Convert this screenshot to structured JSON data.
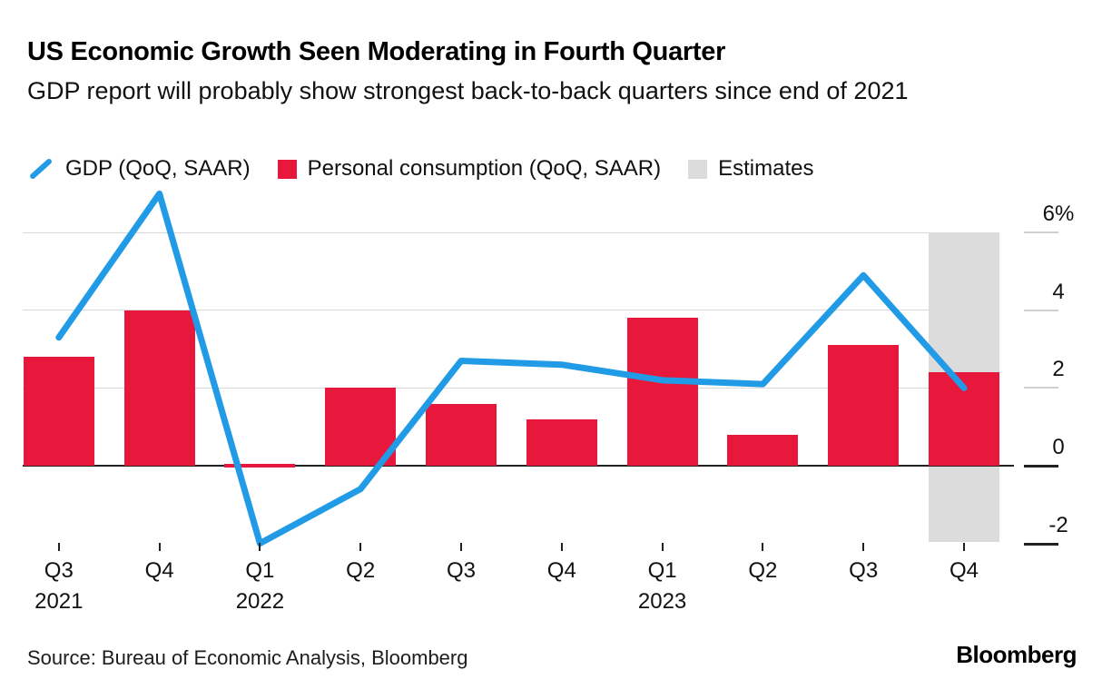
{
  "header": {
    "title": "US Economic Growth Seen Moderating in Fourth Quarter",
    "subtitle": "GDP report will probably show strongest back-to-back quarters since end of 2021"
  },
  "legend": {
    "items": [
      {
        "label": "GDP (QoQ, SAAR)",
        "marker": "line",
        "color": "#219be6"
      },
      {
        "label": "Personal consumption (QoQ, SAAR)",
        "marker": "square",
        "color": "#e8183c"
      },
      {
        "label": "Estimates",
        "marker": "square",
        "color": "#dcdcdc"
      }
    ]
  },
  "chart_data": {
    "type": "combo-line-bar",
    "categories": [
      "Q3 2021",
      "Q4 2021",
      "Q1 2022",
      "Q2 2022",
      "Q3 2022",
      "Q4 2022",
      "Q1 2023",
      "Q2 2023",
      "Q3 2023",
      "Q4 2023"
    ],
    "x_tick_labels": [
      "Q3",
      "Q4",
      "Q1",
      "Q2",
      "Q3",
      "Q4",
      "Q1",
      "Q2",
      "Q3",
      "Q4"
    ],
    "x_year_labels": [
      {
        "index": 0,
        "label": "2021"
      },
      {
        "index": 2,
        "label": "2022"
      },
      {
        "index": 6,
        "label": "2023"
      }
    ],
    "series": [
      {
        "name": "GDP (QoQ, SAAR)",
        "type": "line",
        "color": "#219be6",
        "values": [
          3.3,
          7.0,
          -2.0,
          -0.6,
          2.7,
          2.6,
          2.2,
          2.1,
          4.9,
          2.0
        ]
      },
      {
        "name": "Personal consumption (QoQ, SAAR)",
        "type": "bar",
        "color": "#e8183c",
        "values": [
          2.8,
          4.0,
          0.0,
          2.0,
          1.6,
          1.2,
          3.8,
          0.8,
          3.1,
          2.4
        ]
      }
    ],
    "estimate_band": {
      "label": "Estimates",
      "color": "#dcdcdc",
      "category": "Q4 2023",
      "index": 9
    },
    "unit": "%",
    "ylim": [
      -2.3,
      7.1
    ],
    "yticks": [
      {
        "value": 6,
        "label": "6%",
        "dark": false
      },
      {
        "value": 4,
        "label": "4",
        "dark": false
      },
      {
        "value": 2,
        "label": "2",
        "dark": false
      },
      {
        "value": 0,
        "label": "0",
        "dark": true
      },
      {
        "value": -2,
        "label": "-2",
        "dark": true
      }
    ],
    "grid": true,
    "gridline_color": "#d9d9d9",
    "axis_dark_color": "#222222",
    "legend_position": "top"
  },
  "footer": {
    "source": "Source: Bureau of Economic Analysis, Bloomberg",
    "logo": "Bloomberg"
  }
}
